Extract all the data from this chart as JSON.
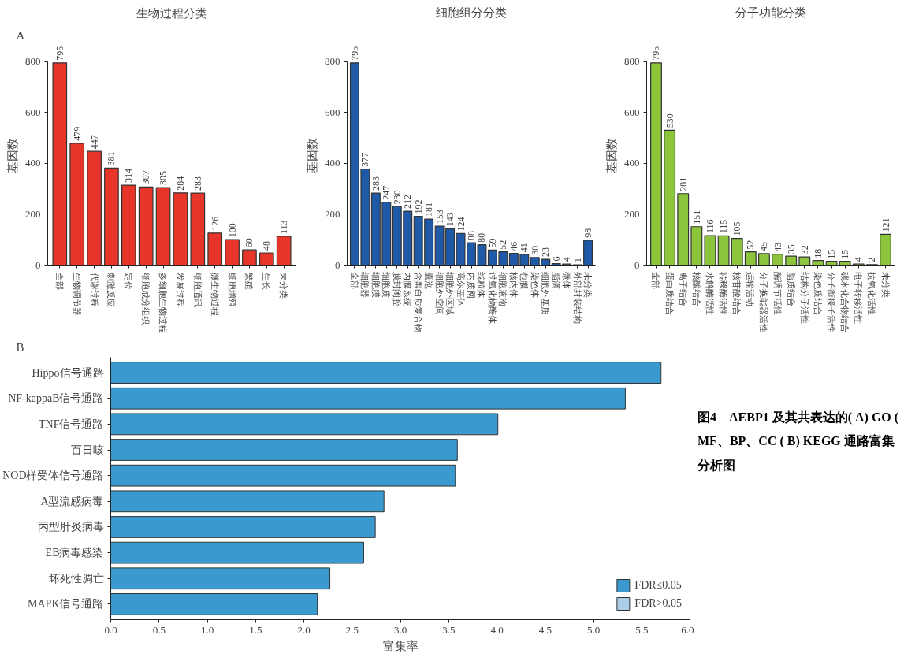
{
  "chart_data": [
    {
      "type": "bar",
      "title": "生物过程分类",
      "ylabel": "基因数",
      "categories": [
        "全部",
        "生物调节器",
        "代谢过程",
        "刺激反应",
        "定位",
        "细胞成分组织",
        "多细胞生物过程",
        "发展过程",
        "细胞通讯",
        "微生物过程",
        "细胞增殖",
        "繁殖",
        "生长",
        "未分类"
      ],
      "values": [
        795,
        479,
        447,
        381,
        314,
        307,
        305,
        284,
        283,
        126,
        100,
        60,
        48,
        113
      ],
      "color": "#e8352a",
      "ylim": [
        0,
        800
      ],
      "yticks": [
        0,
        200,
        400,
        600,
        800
      ],
      "data_labels": true,
      "grid": false,
      "annotations": [
        "A"
      ]
    },
    {
      "type": "bar",
      "title": "细胞组分分类",
      "ylabel": "基因数",
      "categories": [
        "全部",
        "细胞器",
        "细胞膜",
        "细胞质",
        "膜封闭腔",
        "内膜系统",
        "含蛋白质复合物",
        "囊泡",
        "细胞外空间",
        "细胞外区域",
        "高尔基体",
        "内质网",
        "线粒体",
        "过氧化物酶体",
        "细胞液泡",
        "核内体",
        "包膜",
        "染色体",
        "细胞外基质",
        "脂滴",
        "微体",
        "外部封装结构",
        "未分类"
      ],
      "values": [
        795,
        377,
        283,
        247,
        230,
        212,
        192,
        181,
        153,
        143,
        124,
        88,
        80,
        59,
        52,
        46,
        41,
        30,
        23,
        6,
        4,
        1,
        98
      ],
      "color": "#1f5aa8",
      "ylim": [
        0,
        800
      ],
      "yticks": [
        0,
        200,
        400,
        600,
        800
      ],
      "data_labels": true,
      "grid": false
    },
    {
      "type": "bar",
      "title": "分子功能分类",
      "ylabel": "基因数",
      "categories": [
        "全部",
        "蛋白质结合",
        "离子结合",
        "核酸结合",
        "水解酶活性",
        "转移酶活性",
        "核苷酸结合",
        "运输活动",
        "分子换能器活性",
        "酶调节活性",
        "脂质结合",
        "结构分子活性",
        "染色质结合",
        "分子衔接子活性",
        "碳水化合物结合",
        "电子转移活性",
        "抗氧化活性",
        "未分类"
      ],
      "values": [
        795,
        530,
        281,
        151,
        116,
        115,
        105,
        52,
        45,
        43,
        35,
        32,
        18,
        15,
        15,
        4,
        2,
        121
      ],
      "color": "#8cc43c",
      "ylim": [
        0,
        800
      ],
      "yticks": [
        0,
        200,
        400,
        600,
        800
      ],
      "data_labels": true,
      "grid": false
    },
    {
      "type": "bar",
      "orientation": "horizontal",
      "xlabel": "富集率",
      "categories": [
        "Hippo信号通路",
        "NF-kappaB信号通路",
        "TNF信号通路",
        "百日咳",
        "NOD样受体信号通路",
        "A型流感病毒",
        "丙型肝炎病毒",
        "EB病毒感染",
        "坏死性凋亡",
        "MAPK信号通路"
      ],
      "series": [
        {
          "name": "FDR≤0.05",
          "color": "#3a9ad0",
          "values": [
            5.7,
            5.33,
            4.01,
            3.59,
            3.57,
            2.83,
            2.74,
            2.62,
            2.27,
            2.14
          ]
        },
        {
          "name": "FDR>0.05",
          "color": "#a9cde6",
          "values": [
            null,
            null,
            null,
            null,
            null,
            null,
            null,
            null,
            null,
            null
          ]
        }
      ],
      "xlim": [
        0,
        6
      ],
      "xticks": [
        {
          "value": 0,
          "label": "0.0"
        },
        0.5,
        {
          "value": 1,
          "label": "1.0"
        },
        1.5,
        {
          "value": 2,
          "label": "2.0"
        },
        2.5,
        {
          "value": 3,
          "label": "3.0"
        },
        3.5,
        {
          "value": 4,
          "label": "4.0"
        },
        4.5,
        {
          "value": 5,
          "label": "5.0"
        },
        5.5,
        {
          "value": 6,
          "label": "6.0"
        }
      ],
      "legend": "bottom right",
      "grid": false,
      "annotations": [
        "B",
        "图4　AEBP1 及其共表达的( A) GO ( MF、BP、CC ( B) KEGG 通路富集分析图"
      ]
    }
  ]
}
